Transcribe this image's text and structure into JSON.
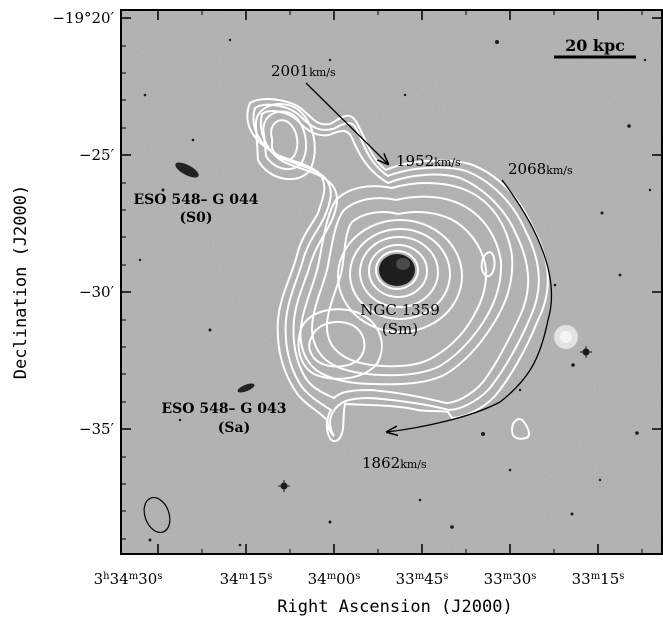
{
  "figure": {
    "x_axis": {
      "title": "Right Ascension (J2000)",
      "ticks": [
        {
          "h": "3",
          "hu": "h",
          "m": "34",
          "mu": "m",
          "s": "30",
          "su": "s"
        },
        {
          "m": "34",
          "mu": "m",
          "s": "15",
          "su": "s"
        },
        {
          "m": "34",
          "mu": "m",
          "s": "00",
          "su": "s"
        },
        {
          "m": "33",
          "mu": "m",
          "s": "45",
          "su": "s"
        },
        {
          "m": "33",
          "mu": "m",
          "s": "30",
          "su": "s"
        },
        {
          "m": "33",
          "mu": "m",
          "s": "15",
          "su": "s"
        }
      ]
    },
    "y_axis": {
      "title": "Declination (J2000)",
      "ticks": [
        "−19°20′",
        "−25′",
        "−30′",
        "−35′"
      ]
    },
    "scale_bar": {
      "label": "20 kpc"
    },
    "galaxies": {
      "ngc1359": {
        "name": "NGC 1359",
        "type": "(Sm)"
      },
      "eso044": {
        "name": "ESO 548– G 044",
        "type": "(S0)"
      },
      "eso043": {
        "name": "ESO 548– G 043",
        "type": "(Sa)"
      }
    },
    "velocities": {
      "v2001": {
        "value": "2001",
        "unit": "km/s"
      },
      "v1952": {
        "value": "1952",
        "unit": "km/s"
      },
      "v2068": {
        "value": "2068",
        "unit": "km/s"
      },
      "v1862": {
        "value": "1862",
        "unit": "km/s"
      }
    },
    "colors": {
      "sky": "#b9b9b9",
      "contour": "#ffffff",
      "ink": "#000000"
    }
  }
}
